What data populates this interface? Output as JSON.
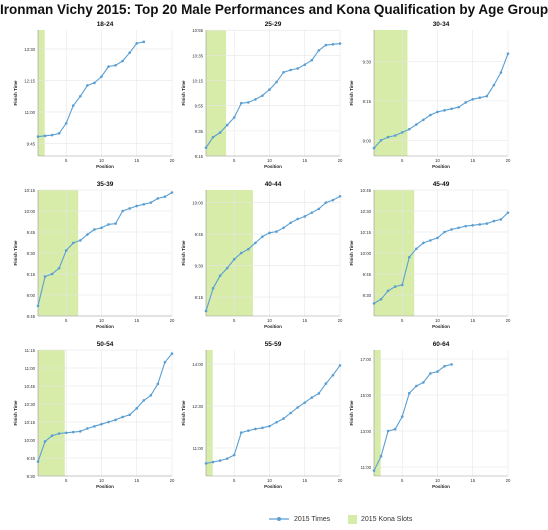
{
  "title": "Ironman Vichy 2015: Top 20 Male Performances and Kona Qualification by Age Group",
  "legend": {
    "times_label": "2015 Times",
    "slots_label": "2015 Kona Slots"
  },
  "colors": {
    "line": "#5a9fd4",
    "kona": "#d6eca8",
    "grid": "#e6e6e6",
    "axis": "#333333"
  },
  "chart_data": [
    {
      "type": "line",
      "title": "18-24",
      "xlabel": "Position",
      "ylabel": "Finish Time",
      "xlim": [
        1,
        20
      ],
      "ylim": [
        9.25,
        14.25
      ],
      "xticks": [
        5,
        10,
        15,
        20
      ],
      "xtick_labels": [
        "5",
        "10",
        "15",
        "20"
      ],
      "yticks": [
        9.75,
        11.0,
        12.25,
        13.5
      ],
      "ytick_labels": [
        "9:45",
        "11:00",
        "12:15",
        "13:30"
      ],
      "kona_slots": 1,
      "x": [
        1,
        2,
        3,
        4,
        5,
        6,
        7,
        8,
        9,
        10,
        11,
        12,
        13,
        14,
        15,
        16
      ],
      "y": [
        10.02,
        10.05,
        10.08,
        10.15,
        10.55,
        11.25,
        11.62,
        12.05,
        12.15,
        12.4,
        12.8,
        12.85,
        13.02,
        13.35,
        13.72,
        13.78
      ]
    },
    {
      "type": "line",
      "title": "25-29",
      "xlabel": "Position",
      "ylabel": "Finish Time",
      "xlim": [
        1,
        20
      ],
      "ylim": [
        9.25,
        10.92
      ],
      "xticks": [
        5,
        10,
        15,
        20
      ],
      "xtick_labels": [
        "5",
        "10",
        "15",
        "20"
      ],
      "yticks": [
        9.25,
        9.583,
        9.917,
        10.25,
        10.583,
        10.917
      ],
      "ytick_labels": [
        "9:15",
        "9:35",
        "9:55",
        "10:15",
        "10:35",
        "10:55"
      ],
      "kona_slots": 3,
      "x": [
        1,
        2,
        3,
        4,
        5,
        6,
        7,
        8,
        9,
        10,
        11,
        12,
        13,
        14,
        15,
        16,
        17,
        18,
        19,
        20
      ],
      "y": [
        9.36,
        9.5,
        9.56,
        9.66,
        9.76,
        9.95,
        9.96,
        10.0,
        10.05,
        10.13,
        10.23,
        10.36,
        10.39,
        10.41,
        10.46,
        10.52,
        10.65,
        10.72,
        10.73,
        10.74
      ]
    },
    {
      "type": "line",
      "title": "30-34",
      "xlabel": "Position",
      "ylabel": "Finish Time",
      "xlim": [
        1,
        20
      ],
      "ylim": [
        8.9,
        9.7
      ],
      "xticks": [
        5,
        10,
        15,
        20
      ],
      "xtick_labels": [
        "5",
        "10",
        "15",
        "20"
      ],
      "yticks": [
        9.0,
        9.25,
        9.5
      ],
      "ytick_labels": [
        "9:00",
        "9:15",
        "9:30"
      ],
      "kona_slots": 5,
      "x": [
        1,
        2,
        3,
        4,
        5,
        6,
        7,
        8,
        9,
        10,
        11,
        12,
        13,
        14,
        15,
        16,
        17,
        18,
        19,
        20
      ],
      "y": [
        8.95,
        9.0,
        9.02,
        9.03,
        9.05,
        9.07,
        9.1,
        9.13,
        9.16,
        9.18,
        9.19,
        9.2,
        9.21,
        9.24,
        9.26,
        9.27,
        9.28,
        9.35,
        9.43,
        9.55
      ]
    },
    {
      "type": "line",
      "title": "35-39",
      "xlabel": "Position",
      "ylabel": "Finish Time",
      "xlim": [
        1,
        20
      ],
      "ylim": [
        8.75,
        10.25
      ],
      "xticks": [
        5,
        10,
        15,
        20
      ],
      "xtick_labels": [
        "5",
        "10",
        "15",
        "20"
      ],
      "yticks": [
        8.75,
        9.0,
        9.25,
        9.5,
        9.75,
        10.0,
        10.25
      ],
      "ytick_labels": [
        "8:45",
        "9:00",
        "9:15",
        "9:30",
        "9:45",
        "10:00",
        "10:15"
      ],
      "kona_slots": 6,
      "x": [
        1,
        2,
        3,
        4,
        5,
        6,
        7,
        8,
        9,
        10,
        11,
        12,
        13,
        14,
        15,
        16,
        17,
        18,
        19,
        20
      ],
      "y": [
        8.87,
        9.22,
        9.25,
        9.32,
        9.53,
        9.62,
        9.65,
        9.72,
        9.78,
        9.8,
        9.84,
        9.85,
        10.0,
        10.03,
        10.06,
        10.08,
        10.1,
        10.15,
        10.17,
        10.22
      ]
    },
    {
      "type": "line",
      "title": "40-44",
      "xlabel": "Position",
      "ylabel": "Finish Time",
      "xlim": [
        1,
        20
      ],
      "ylim": [
        9.1,
        10.1
      ],
      "xticks": [
        5,
        10,
        15,
        20
      ],
      "xtick_labels": [
        "5",
        "10",
        "15",
        "20"
      ],
      "yticks": [
        9.25,
        9.5,
        9.75,
        10.0
      ],
      "ytick_labels": [
        "9:15",
        "9:30",
        "9:45",
        "10:00"
      ],
      "kona_slots": 7,
      "x": [
        1,
        2,
        3,
        4,
        5,
        6,
        7,
        8,
        9,
        10,
        11,
        12,
        13,
        14,
        15,
        16,
        17,
        18,
        19,
        20
      ],
      "y": [
        9.14,
        9.32,
        9.42,
        9.48,
        9.55,
        9.6,
        9.63,
        9.68,
        9.73,
        9.76,
        9.77,
        9.8,
        9.84,
        9.87,
        9.89,
        9.92,
        9.95,
        10.0,
        10.02,
        10.05
      ]
    },
    {
      "type": "line",
      "title": "45-49",
      "xlabel": "Position",
      "ylabel": "Finish Time",
      "xlim": [
        1,
        20
      ],
      "ylim": [
        9.25,
        10.75
      ],
      "xticks": [
        5,
        10,
        15,
        20
      ],
      "xtick_labels": [
        "5",
        "10",
        "15",
        "20"
      ],
      "yticks": [
        9.5,
        9.75,
        10.0,
        10.25,
        10.5,
        10.75
      ],
      "ytick_labels": [
        "9:30",
        "9:45",
        "10:00",
        "10:15",
        "10:30",
        "10:45"
      ],
      "kona_slots": 6,
      "x": [
        1,
        2,
        3,
        4,
        5,
        6,
        7,
        8,
        9,
        10,
        11,
        12,
        13,
        14,
        15,
        16,
        17,
        18,
        19,
        20
      ],
      "y": [
        9.4,
        9.45,
        9.55,
        9.6,
        9.62,
        9.95,
        10.05,
        10.12,
        10.15,
        10.18,
        10.25,
        10.28,
        10.3,
        10.32,
        10.33,
        10.34,
        10.35,
        10.38,
        10.4,
        10.48
      ]
    },
    {
      "type": "line",
      "title": "50-54",
      "xlabel": "Position",
      "ylabel": "Finish Time",
      "xlim": [
        1,
        20
      ],
      "ylim": [
        9.5,
        11.25
      ],
      "xticks": [
        5,
        10,
        15,
        20
      ],
      "xtick_labels": [
        "5",
        "10",
        "15",
        "20"
      ],
      "yticks": [
        9.5,
        9.75,
        10.0,
        10.25,
        10.5,
        10.75,
        11.0,
        11.25
      ],
      "ytick_labels": [
        "9:30",
        "9:45",
        "10:00",
        "10:15",
        "10:30",
        "10:45",
        "11:00",
        "11:15"
      ],
      "kona_slots": 4,
      "x": [
        1,
        2,
        3,
        4,
        5,
        6,
        7,
        8,
        9,
        10,
        11,
        12,
        13,
        14,
        15,
        16,
        17,
        18,
        19,
        20
      ],
      "y": [
        9.7,
        9.98,
        10.06,
        10.09,
        10.1,
        10.11,
        10.12,
        10.16,
        10.19,
        10.22,
        10.25,
        10.28,
        10.32,
        10.35,
        10.44,
        10.55,
        10.62,
        10.78,
        11.08,
        11.2
      ]
    },
    {
      "type": "line",
      "title": "55-59",
      "xlabel": "Position",
      "ylabel": "Finish Time",
      "xlim": [
        1,
        20
      ],
      "ylim": [
        10.0,
        14.5
      ],
      "xticks": [
        5,
        10,
        15,
        20
      ],
      "xtick_labels": [
        "5",
        "10",
        "15",
        "20"
      ],
      "yticks": [
        11.0,
        12.5,
        14.0
      ],
      "ytick_labels": [
        "11:00",
        "12:30",
        "14:00"
      ],
      "kona_slots": 1,
      "x": [
        1,
        2,
        3,
        4,
        5,
        6,
        7,
        8,
        9,
        10,
        11,
        12,
        13,
        14,
        15,
        16,
        17,
        18,
        19,
        20
      ],
      "y": [
        10.45,
        10.5,
        10.55,
        10.62,
        10.75,
        11.55,
        11.62,
        11.68,
        11.72,
        11.78,
        11.92,
        12.05,
        12.25,
        12.45,
        12.62,
        12.8,
        12.95,
        13.3,
        13.6,
        13.95
      ]
    },
    {
      "type": "line",
      "title": "60-64",
      "xlabel": "Position",
      "ylabel": "Finish Time",
      "xlim": [
        1,
        20
      ],
      "ylim": [
        10.5,
        17.5
      ],
      "xticks": [
        5,
        10,
        15,
        20
      ],
      "xtick_labels": [
        "5",
        "10",
        "15",
        "20"
      ],
      "yticks": [
        11.0,
        13.0,
        15.0,
        17.0
      ],
      "ytick_labels": [
        "11:00",
        "13:00",
        "15:00",
        "17:00"
      ],
      "kona_slots": 1,
      "x": [
        1,
        2,
        3,
        4,
        5,
        6,
        7,
        8,
        9,
        10,
        11,
        12
      ],
      "y": [
        10.8,
        11.6,
        13.0,
        13.1,
        13.8,
        15.1,
        15.5,
        15.7,
        16.2,
        16.3,
        16.6,
        16.7
      ]
    }
  ]
}
